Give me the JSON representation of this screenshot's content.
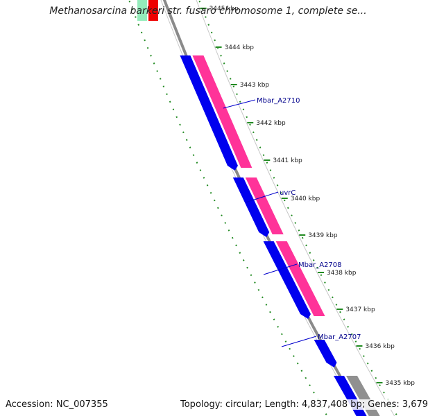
{
  "map": {
    "title": "Methanosarcina barkeri str. fusaro chromosome 1, complete se...",
    "accession_text": "Accession: NC_007355",
    "topology_text": "Topology: circular; Length: 4,837,408 bp; Genes: 3,679"
  },
  "ticks": [
    {
      "label": "3445 kbp"
    },
    {
      "label": "3444 kbp"
    },
    {
      "label": "3443 kbp"
    },
    {
      "label": "3442 kbp"
    },
    {
      "label": "3441 kbp"
    },
    {
      "label": "3440 kbp"
    },
    {
      "label": "3439 kbp"
    },
    {
      "label": "3438 kbp"
    },
    {
      "label": "3437 kbp"
    },
    {
      "label": "3436 kbp"
    },
    {
      "label": "3435 kbp"
    }
  ],
  "genes": [
    {
      "name": "Mbar_A2710"
    },
    {
      "name": "uvrC"
    },
    {
      "name": "Mbar_A2708"
    },
    {
      "name": "Mbar_A2707"
    }
  ],
  "colors": {
    "cds": "#0000ee",
    "feature": "#ff3399",
    "backbone": "#8a8a8a",
    "track_outline": "#c8c8c8",
    "dotted_track": "#228b22",
    "label": "#00008b",
    "leader": "#0000cc",
    "tick_text": "#222222",
    "gene_top_green": "#3ddc84",
    "gene_top_red": "#ee0000",
    "gene_top_grey": "#909090"
  }
}
